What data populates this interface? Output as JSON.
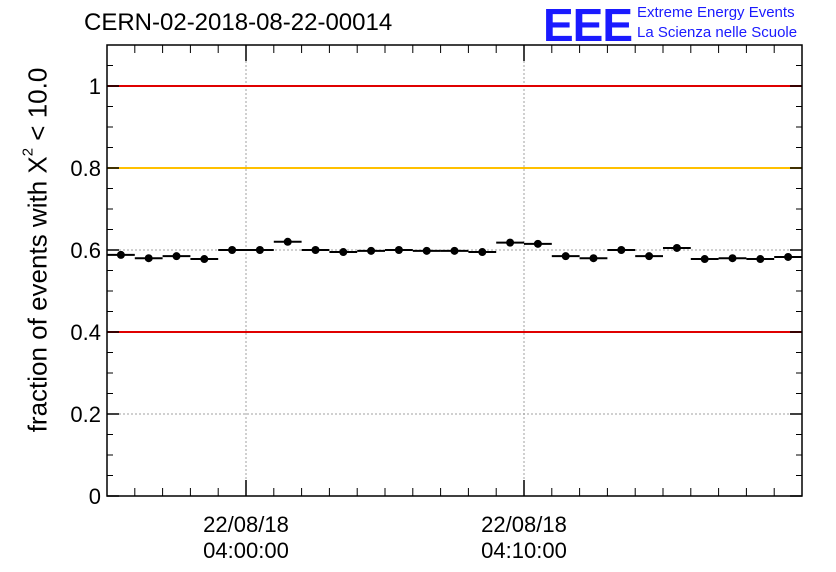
{
  "header": {
    "title": "CERN-02-2018-08-22-00014",
    "logo": "EEE",
    "logo_line1": "Extreme Energy Events",
    "logo_line2": "La Scienza nelle Scuole"
  },
  "chart_data": {
    "type": "scatter",
    "ylabel_prefix": "fraction of events with X",
    "ylabel_sup": "2",
    "ylabel_suffix": " < 10.0",
    "ylim": [
      0,
      1.1
    ],
    "xlim": [
      "03:55:00",
      "04:20:00"
    ],
    "yticks": [
      0,
      0.2,
      0.4,
      0.6,
      0.8,
      1
    ],
    "ytick_labels": [
      "0",
      "0.2",
      "0.4",
      "0.6",
      "0.8",
      "1"
    ],
    "xticks": [
      {
        "time": "04:00:00",
        "label_date": "22/08/18",
        "label_time": "04:00:00"
      },
      {
        "time": "04:10:00",
        "label_date": "22/08/18",
        "label_time": "04:10:00"
      }
    ],
    "reference_lines": [
      {
        "y": 1.0,
        "color": "#e00000"
      },
      {
        "y": 0.8,
        "color": "#ffc000"
      },
      {
        "y": 0.4,
        "color": "#e00000"
      }
    ],
    "grid": true,
    "bin_minutes": 1,
    "series": [
      {
        "x": [
          "03:55:30",
          "03:56:30",
          "03:57:30",
          "03:58:30",
          "03:59:30",
          "04:00:30",
          "04:01:30",
          "04:02:30",
          "04:03:30",
          "04:04:30",
          "04:05:30",
          "04:06:30",
          "04:07:30",
          "04:08:30",
          "04:09:30",
          "04:10:30",
          "04:11:30",
          "04:12:30",
          "04:13:30",
          "04:14:30",
          "04:15:30",
          "04:16:30",
          "04:17:30",
          "04:18:30",
          "04:19:30"
        ],
        "values": [
          0.588,
          0.58,
          0.585,
          0.578,
          0.6,
          0.6,
          0.62,
          0.6,
          0.595,
          0.598,
          0.6,
          0.598,
          0.598,
          0.595,
          0.618,
          0.615,
          0.585,
          0.58,
          0.6,
          0.585,
          0.605,
          0.578,
          0.58,
          0.578,
          0.583
        ]
      }
    ]
  }
}
